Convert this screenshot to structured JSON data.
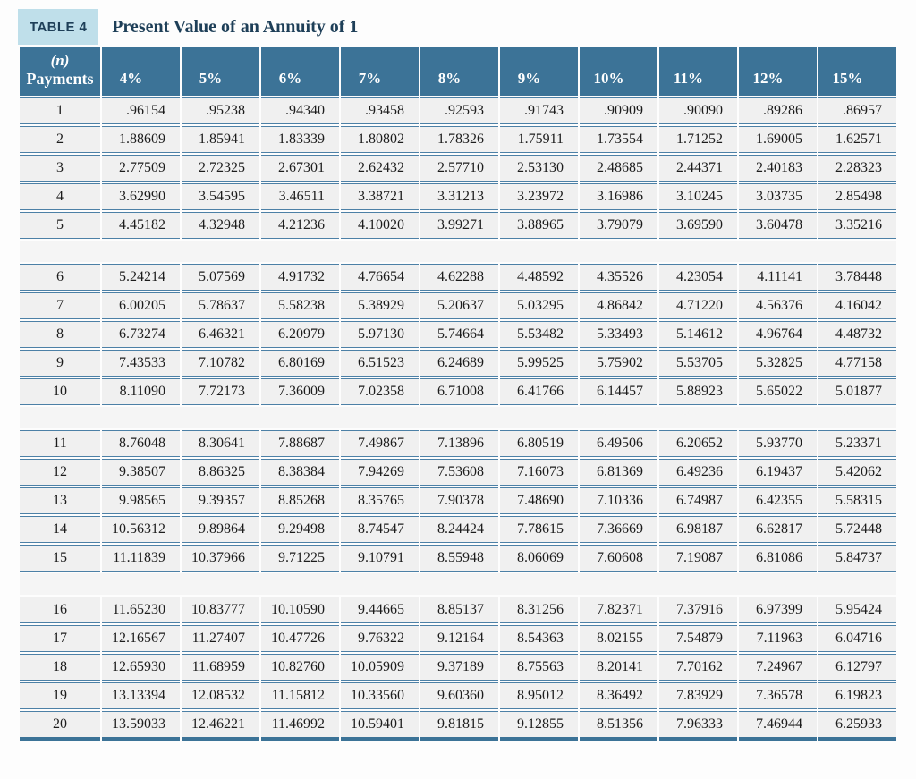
{
  "header": {
    "label": "TABLE 4",
    "title": "Present Value of an Annuity of 1"
  },
  "table": {
    "first_column_header": {
      "line1": "(n)",
      "line2": "Payments"
    },
    "rate_headers": [
      "4%",
      "5%",
      "6%",
      "7%",
      "8%",
      "9%",
      "10%",
      "11%",
      "12%",
      "15%"
    ],
    "group_size": 5,
    "rows": [
      {
        "n": "1",
        "values": [
          ".96154",
          ".95238",
          ".94340",
          ".93458",
          ".92593",
          ".91743",
          ".90909",
          ".90090",
          ".89286",
          ".86957"
        ]
      },
      {
        "n": "2",
        "values": [
          "1.88609",
          "1.85941",
          "1.83339",
          "1.80802",
          "1.78326",
          "1.75911",
          "1.73554",
          "1.71252",
          "1.69005",
          "1.62571"
        ]
      },
      {
        "n": "3",
        "values": [
          "2.77509",
          "2.72325",
          "2.67301",
          "2.62432",
          "2.57710",
          "2.53130",
          "2.48685",
          "2.44371",
          "2.40183",
          "2.28323"
        ]
      },
      {
        "n": "4",
        "values": [
          "3.62990",
          "3.54595",
          "3.46511",
          "3.38721",
          "3.31213",
          "3.23972",
          "3.16986",
          "3.10245",
          "3.03735",
          "2.85498"
        ]
      },
      {
        "n": "5",
        "values": [
          "4.45182",
          "4.32948",
          "4.21236",
          "4.10020",
          "3.99271",
          "3.88965",
          "3.79079",
          "3.69590",
          "3.60478",
          "3.35216"
        ]
      },
      {
        "n": "6",
        "values": [
          "5.24214",
          "5.07569",
          "4.91732",
          "4.76654",
          "4.62288",
          "4.48592",
          "4.35526",
          "4.23054",
          "4.11141",
          "3.78448"
        ]
      },
      {
        "n": "7",
        "values": [
          "6.00205",
          "5.78637",
          "5.58238",
          "5.38929",
          "5.20637",
          "5.03295",
          "4.86842",
          "4.71220",
          "4.56376",
          "4.16042"
        ]
      },
      {
        "n": "8",
        "values": [
          "6.73274",
          "6.46321",
          "6.20979",
          "5.97130",
          "5.74664",
          "5.53482",
          "5.33493",
          "5.14612",
          "4.96764",
          "4.48732"
        ]
      },
      {
        "n": "9",
        "values": [
          "7.43533",
          "7.10782",
          "6.80169",
          "6.51523",
          "6.24689",
          "5.99525",
          "5.75902",
          "5.53705",
          "5.32825",
          "4.77158"
        ]
      },
      {
        "n": "10",
        "values": [
          "8.11090",
          "7.72173",
          "7.36009",
          "7.02358",
          "6.71008",
          "6.41766",
          "6.14457",
          "5.88923",
          "5.65022",
          "5.01877"
        ]
      },
      {
        "n": "11",
        "values": [
          "8.76048",
          "8.30641",
          "7.88687",
          "7.49867",
          "7.13896",
          "6.80519",
          "6.49506",
          "6.20652",
          "5.93770",
          "5.23371"
        ]
      },
      {
        "n": "12",
        "values": [
          "9.38507",
          "8.86325",
          "8.38384",
          "7.94269",
          "7.53608",
          "7.16073",
          "6.81369",
          "6.49236",
          "6.19437",
          "5.42062"
        ]
      },
      {
        "n": "13",
        "values": [
          "9.98565",
          "9.39357",
          "8.85268",
          "8.35765",
          "7.90378",
          "7.48690",
          "7.10336",
          "6.74987",
          "6.42355",
          "5.58315"
        ]
      },
      {
        "n": "14",
        "values": [
          "10.56312",
          "9.89864",
          "9.29498",
          "8.74547",
          "8.24424",
          "7.78615",
          "7.36669",
          "6.98187",
          "6.62817",
          "5.72448"
        ]
      },
      {
        "n": "15",
        "values": [
          "11.11839",
          "10.37966",
          "9.71225",
          "9.10791",
          "8.55948",
          "8.06069",
          "7.60608",
          "7.19087",
          "6.81086",
          "5.84737"
        ]
      },
      {
        "n": "16",
        "values": [
          "11.65230",
          "10.83777",
          "10.10590",
          "9.44665",
          "8.85137",
          "8.31256",
          "7.82371",
          "7.37916",
          "6.97399",
          "5.95424"
        ]
      },
      {
        "n": "17",
        "values": [
          "12.16567",
          "11.27407",
          "10.47726",
          "9.76322",
          "9.12164",
          "8.54363",
          "8.02155",
          "7.54879",
          "7.11963",
          "6.04716"
        ]
      },
      {
        "n": "18",
        "values": [
          "12.65930",
          "11.68959",
          "10.82760",
          "10.05909",
          "9.37189",
          "8.75563",
          "8.20141",
          "7.70162",
          "7.24967",
          "6.12797"
        ]
      },
      {
        "n": "19",
        "values": [
          "13.13394",
          "12.08532",
          "11.15812",
          "10.33560",
          "9.60360",
          "8.95012",
          "8.36492",
          "7.83929",
          "7.36578",
          "6.19823"
        ]
      },
      {
        "n": "20",
        "values": [
          "13.59033",
          "12.46221",
          "11.46992",
          "10.59401",
          "9.81815",
          "9.12855",
          "8.51356",
          "7.96333",
          "7.46944",
          "6.25933"
        ]
      }
    ]
  },
  "colors": {
    "header_bg": "#3c7397",
    "label_bg": "#bfdfea",
    "heading_text": "#1e3f58",
    "row_bg": "#f0f0f0",
    "spacer_bg": "#f5f5f5",
    "divider": "#4c80a6",
    "bottom_border": "#3c7397",
    "cell_text": "#1c1c1c",
    "page_bg": "#fdfdfd"
  }
}
